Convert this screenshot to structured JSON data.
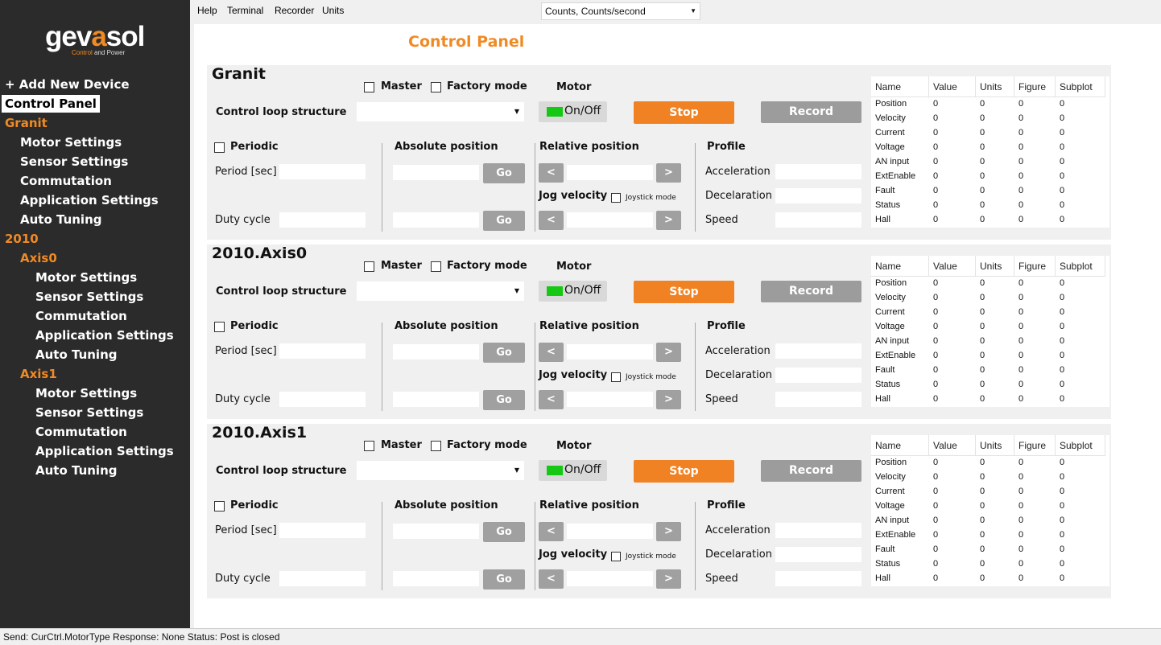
{
  "logo": {
    "brand_part1": "gev",
    "brand_part2": "a",
    "brand_part3": "sol",
    "tagline_part1": "Control",
    "tagline_part2": " and ",
    "tagline_part3": "Power"
  },
  "sidebar": {
    "add_device": "+ Add New Device",
    "control_panel": "Control Panel",
    "devices": [
      {
        "name": "Granit",
        "items": [
          "Motor Settings",
          "Sensor Settings",
          "Commutation",
          "Application Settings",
          "Auto Tuning"
        ]
      },
      {
        "name": "2010",
        "axes": [
          {
            "name": "Axis0",
            "items": [
              "Motor Settings",
              "Sensor Settings",
              "Commutation",
              "Application Settings",
              "Auto Tuning"
            ]
          },
          {
            "name": "Axis1",
            "items": [
              "Motor Settings",
              "Sensor Settings",
              "Commutation",
              "Application Settings",
              "Auto Tuning"
            ]
          }
        ]
      }
    ]
  },
  "menubar": {
    "items": [
      "Help",
      "Terminal",
      "Recorder",
      "Units"
    ],
    "units_value": "Counts, Counts/second"
  },
  "page_title": "Control Panel",
  "labels": {
    "master": "Master",
    "factory_mode": "Factory mode",
    "motor": "Motor",
    "control_loop": "Control loop structure",
    "on_off": "On/Off",
    "stop": "Stop",
    "record": "Record",
    "periodic": "Periodic",
    "period": "Period [sec]",
    "duty_cycle": "Duty cycle",
    "absolute_position": "Absolute position",
    "go": "Go",
    "relative_position": "Relative position",
    "jog_velocity": "Jog velocity",
    "joystick_mode": "Joystick mode",
    "left_arrow": "<",
    "right_arrow": ">",
    "profile": "Profile",
    "acceleration": "Acceleration",
    "decelaration": "Decelaration",
    "speed": "Speed"
  },
  "table_headers": [
    "Name",
    "Value",
    "Units",
    "Figure",
    "Subplot"
  ],
  "panels": [
    {
      "name": "Granit",
      "rows": [
        [
          "Position",
          "0",
          "0",
          "0",
          "0"
        ],
        [
          "Velocity",
          "0",
          "0",
          "0",
          "0"
        ],
        [
          "Current",
          "0",
          "0",
          "0",
          "0"
        ],
        [
          "Voltage",
          "0",
          "0",
          "0",
          "0"
        ],
        [
          "AN input",
          "0",
          "0",
          "0",
          "0"
        ],
        [
          "ExtEnable",
          "0",
          "0",
          "0",
          "0"
        ],
        [
          "Fault",
          "0",
          "0",
          "0",
          "0"
        ],
        [
          "Status",
          "0",
          "0",
          "0",
          "0"
        ],
        [
          "Hall",
          "0",
          "0",
          "0",
          "0"
        ]
      ]
    },
    {
      "name": "2010.Axis0",
      "rows": [
        [
          "Position",
          "0",
          "0",
          "0",
          "0"
        ],
        [
          "Velocity",
          "0",
          "0",
          "0",
          "0"
        ],
        [
          "Current",
          "0",
          "0",
          "0",
          "0"
        ],
        [
          "Voltage",
          "0",
          "0",
          "0",
          "0"
        ],
        [
          "AN input",
          "0",
          "0",
          "0",
          "0"
        ],
        [
          "ExtEnable",
          "0",
          "0",
          "0",
          "0"
        ],
        [
          "Fault",
          "0",
          "0",
          "0",
          "0"
        ],
        [
          "Status",
          "0",
          "0",
          "0",
          "0"
        ],
        [
          "Hall",
          "0",
          "0",
          "0",
          "0"
        ]
      ]
    },
    {
      "name": "2010.Axis1",
      "rows": [
        [
          "Position",
          "0",
          "0",
          "0",
          "0"
        ],
        [
          "Velocity",
          "0",
          "0",
          "0",
          "0"
        ],
        [
          "Current",
          "0",
          "0",
          "0",
          "0"
        ],
        [
          "Voltage",
          "0",
          "0",
          "0",
          "0"
        ],
        [
          "AN input",
          "0",
          "0",
          "0",
          "0"
        ],
        [
          "ExtEnable",
          "0",
          "0",
          "0",
          "0"
        ],
        [
          "Fault",
          "0",
          "0",
          "0",
          "0"
        ],
        [
          "Status",
          "0",
          "0",
          "0",
          "0"
        ],
        [
          "Hall",
          "0",
          "0",
          "0",
          "0"
        ]
      ]
    }
  ],
  "statusbar": "Send: CurCtrl.MotorType  Response: None  Status: Post is closed",
  "colors": {
    "accent": "#f08a24",
    "sidebar_bg": "#2b2b2b",
    "led_on": "#14c814",
    "stop_button": "#f08224",
    "gray_button": "#9c9c9c"
  }
}
